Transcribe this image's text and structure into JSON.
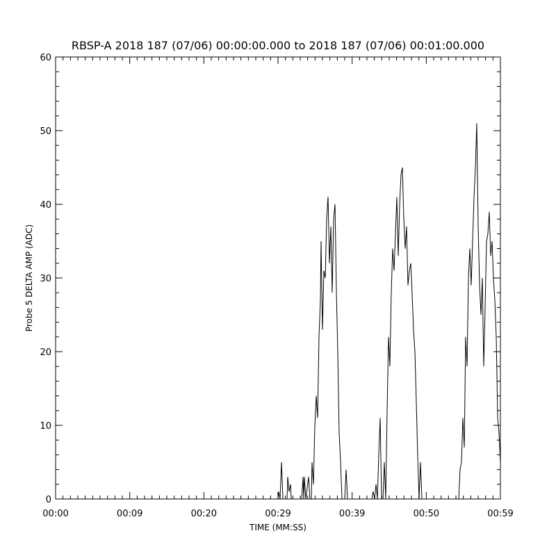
{
  "chart_data": {
    "type": "line",
    "title": "RBSP-A 2018 187 (07/06) 00:00:00.000 to 2018 187 (07/06) 00:01:00.000",
    "xlabel": "TIME (MM:SS)",
    "ylabel": "Probe 5 DELTA AMP (ADC)",
    "color": "#000000",
    "xlim": [
      0,
      60
    ],
    "ylim": [
      0,
      60
    ],
    "xticks": [
      {
        "value": 0,
        "label": "00:00"
      },
      {
        "value": 10,
        "label": "00:09"
      },
      {
        "value": 20,
        "label": "00:20"
      },
      {
        "value": 30,
        "label": "00:29"
      },
      {
        "value": 40,
        "label": "00:39"
      },
      {
        "value": 50,
        "label": "00:50"
      },
      {
        "value": 60,
        "label": "00:59"
      }
    ],
    "yticks": [
      0,
      10,
      20,
      30,
      40,
      50,
      60
    ],
    "x": [
      0,
      30.0,
      30.09,
      30.28,
      30.47,
      30.66,
      31.22,
      31.31,
      31.5,
      31.69,
      31.78,
      33.19,
      33.38,
      33.47,
      33.56,
      33.75,
      34.13,
      34.31,
      34.5,
      34.59,
      34.78,
      34.97,
      35.16,
      35.34,
      35.53,
      35.72,
      35.81,
      36.0,
      36.19,
      36.38,
      36.56,
      36.75,
      36.94,
      37.13,
      37.31,
      37.5,
      37.69,
      37.88,
      38.06,
      38.25,
      38.44,
      38.63,
      39.0,
      39.19,
      39.38,
      42.66,
      42.84,
      43.03,
      43.22,
      43.41,
      43.59,
      43.78,
      43.97,
      44.16,
      44.34,
      44.53,
      44.72,
      44.91,
      45.09,
      45.28,
      45.47,
      45.66,
      45.84,
      46.03,
      46.22,
      46.41,
      46.59,
      46.78,
      46.97,
      47.16,
      47.34,
      47.53,
      47.72,
      47.91,
      48.09,
      48.28,
      48.47,
      48.66,
      48.84,
      49.03,
      49.22,
      49.41,
      54.38,
      54.56,
      54.75,
      54.94,
      55.13,
      55.31,
      55.5,
      55.69,
      55.88,
      56.06,
      56.25,
      56.44,
      56.63,
      56.81,
      57.0,
      57.19,
      57.38,
      57.56,
      57.75,
      57.94,
      58.13,
      58.31,
      58.5,
      58.69,
      58.88,
      59.06,
      59.25,
      59.44,
      59.63,
      59.81,
      60.0
    ],
    "values": [
      0,
      0,
      1,
      0,
      5,
      0,
      0,
      3,
      1,
      2,
      0,
      0,
      3,
      0,
      3,
      0,
      3,
      0,
      0,
      5,
      2,
      10,
      14,
      11,
      22,
      27,
      35,
      23,
      31,
      30,
      38,
      41,
      32,
      37,
      28,
      38,
      40,
      28,
      20,
      9,
      5,
      0,
      0,
      4,
      0,
      0,
      1,
      0,
      2,
      0,
      6,
      11,
      0,
      0,
      5,
      0,
      12,
      22,
      18,
      28,
      34,
      31,
      36,
      41,
      33,
      40,
      44,
      45,
      38,
      34,
      37,
      29,
      31,
      32,
      28,
      23,
      20,
      13,
      6,
      0,
      5,
      0,
      0,
      4,
      5,
      11,
      7,
      22,
      18,
      30,
      34,
      29,
      35,
      41,
      45,
      51,
      37,
      29,
      25,
      30,
      18,
      26,
      35,
      36,
      39,
      33,
      35,
      30,
      27,
      22,
      11,
      9,
      5
    ]
  }
}
